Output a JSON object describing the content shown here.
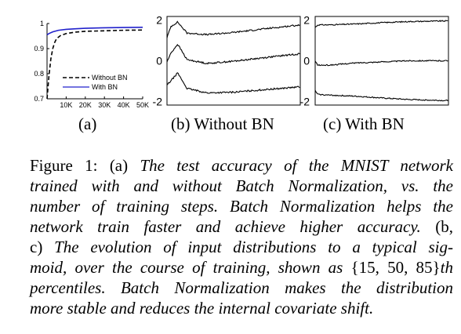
{
  "chart_data": [
    {
      "panel": "a",
      "type": "line",
      "ylim": [
        0.7,
        1.0
      ],
      "xlim": [
        0,
        50000
      ],
      "y_ticks": [
        "0.7",
        "0.8",
        "0.9",
        "1"
      ],
      "x_ticks": [
        "10K",
        "20K",
        "30K",
        "40K",
        "50K"
      ],
      "legend": [
        "Without BN",
        "With BN"
      ],
      "legend_position": "bottom-right",
      "series": [
        {
          "name": "Without BN",
          "style": "dashed",
          "color": "#000000",
          "x": [
            0,
            1000,
            2000,
            3000,
            4000,
            5000,
            7000,
            10000,
            15000,
            20000,
            30000,
            40000,
            50000
          ],
          "values": [
            0.7,
            0.79,
            0.86,
            0.9,
            0.925,
            0.94,
            0.952,
            0.96,
            0.966,
            0.969,
            0.971,
            0.973,
            0.974
          ]
        },
        {
          "name": "With BN",
          "style": "solid",
          "color": "#2222cc",
          "x": [
            0,
            1000,
            3000,
            6000,
            10000,
            15000,
            20000,
            30000,
            40000,
            50000
          ],
          "values": [
            0.955,
            0.96,
            0.967,
            0.973,
            0.977,
            0.979,
            0.981,
            0.983,
            0.984,
            0.985
          ]
        }
      ]
    },
    {
      "panel": "b",
      "type": "line",
      "title": "(b) Without BN",
      "ylim": [
        -2,
        2
      ],
      "y_ticks": [
        "2",
        "0",
        "-2"
      ],
      "series": [
        {
          "x": [
            0,
            0.03,
            0.08,
            0.15,
            0.3,
            0.5,
            0.7,
            0.85,
            1.0
          ],
          "values": [
            1.05,
            1.55,
            1.75,
            1.25,
            1.18,
            1.28,
            1.42,
            1.52,
            1.62
          ]
        },
        {
          "x": [
            0,
            0.03,
            0.08,
            0.15,
            0.3,
            0.5,
            0.7,
            0.85,
            1.0
          ],
          "values": [
            -0.05,
            0.35,
            0.75,
            0.05,
            -0.12,
            -0.02,
            0.12,
            0.22,
            0.32
          ]
        },
        {
          "x": [
            0,
            0.03,
            0.08,
            0.15,
            0.3,
            0.5,
            0.7,
            0.85,
            1.0
          ],
          "values": [
            -1.1,
            -0.9,
            -0.55,
            -1.25,
            -1.45,
            -1.42,
            -1.32,
            -1.25,
            -1.18
          ]
        }
      ]
    },
    {
      "panel": "c",
      "type": "line",
      "title": "(c) With BN",
      "ylim": [
        -2,
        2
      ],
      "y_ticks": [
        "2",
        "0",
        "-2"
      ],
      "series": [
        {
          "x": [
            0,
            0.02,
            0.1,
            0.3,
            0.5,
            0.7,
            1.0
          ],
          "values": [
            1.5,
            1.62,
            1.62,
            1.66,
            1.72,
            1.77,
            1.8
          ]
        },
        {
          "x": [
            0,
            0.02,
            0.1,
            0.3,
            0.5,
            0.7,
            1.0
          ],
          "values": [
            -0.02,
            -0.2,
            -0.2,
            -0.1,
            -0.05,
            0.0,
            0.0
          ]
        },
        {
          "x": [
            0,
            0.02,
            0.1,
            0.3,
            0.5,
            0.7,
            1.0
          ],
          "values": [
            -1.35,
            -1.52,
            -1.55,
            -1.6,
            -1.68,
            -1.75,
            -1.8
          ]
        }
      ]
    }
  ],
  "labels": {
    "a": "(a)",
    "b": "(b) Without BN",
    "c": "(c) With BN"
  },
  "caption": {
    "l1_a": "Figure 1:  (a) ",
    "l1_b": "The test accuracy of the MNIST network",
    "l2": "trained with and without Batch Normalization, vs.  the",
    "l3": "number of training steps.  Batch Normalization helps the",
    "l4_a": "network train faster and achieve higher accuracy.",
    "l4_b": "  (b,",
    "l5_a": "c) ",
    "l5_b": "The evolution of input distributions to a typical sig-",
    "l6_a": "moid, over the course of training, shown as ",
    "l6_b": "{15, 50, 85}",
    "l6_c": "th",
    "l7": "percentiles.  Batch Normalization makes the distribution",
    "l8": "more stable and reduces the internal covariate shift."
  }
}
